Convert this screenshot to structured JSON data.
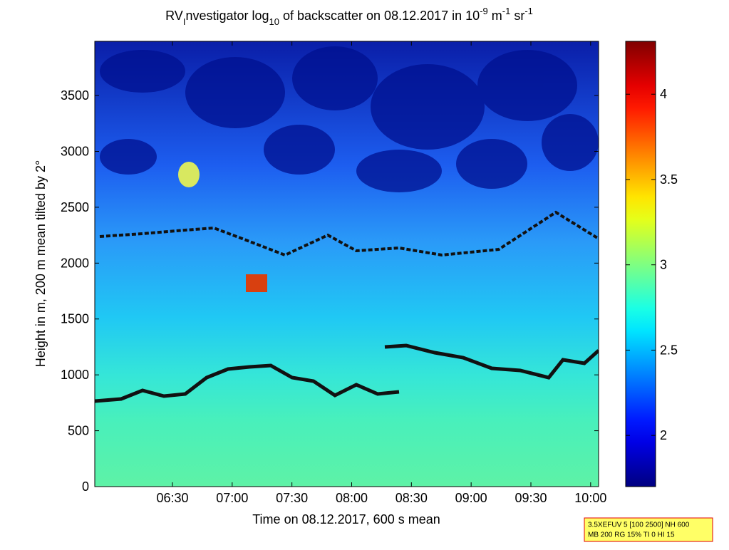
{
  "chart_data": {
    "type": "heatmap",
    "title_parts": [
      "RV",
      "I",
      "nvestigator log",
      "10",
      " of backscatter on 08.12.2017 in 10",
      "-9",
      " m",
      "-1",
      " sr",
      "-1"
    ],
    "x_label": "Time on 08.12.2017, 600 s mean",
    "y_label": "Height in m, 200 m mean tilted by 2°",
    "xlim": [
      351,
      604
    ],
    "xticks": [
      {
        "value": 390,
        "label": "06:30"
      },
      {
        "value": 420,
        "label": "07:00"
      },
      {
        "value": 450,
        "label": "07:30"
      },
      {
        "value": 480,
        "label": "08:00"
      },
      {
        "value": 510,
        "label": "08:30"
      },
      {
        "value": 540,
        "label": "09:00"
      },
      {
        "value": 570,
        "label": "09:30"
      },
      {
        "value": 600,
        "label": "10:00"
      }
    ],
    "ylim": [
      0,
      3985
    ],
    "yticks": [
      0,
      500,
      1000,
      1500,
      2000,
      2500,
      3000,
      3500
    ],
    "colormap": "jet",
    "clim": [
      1.7,
      4.31
    ],
    "cticks": [
      2,
      2.5,
      3,
      3.5,
      4
    ],
    "annotation": [
      "3.5XEFUV 5 [100 2500] NH 600",
      "MB 200 RG 15% TI 0 HI 15"
    ]
  }
}
